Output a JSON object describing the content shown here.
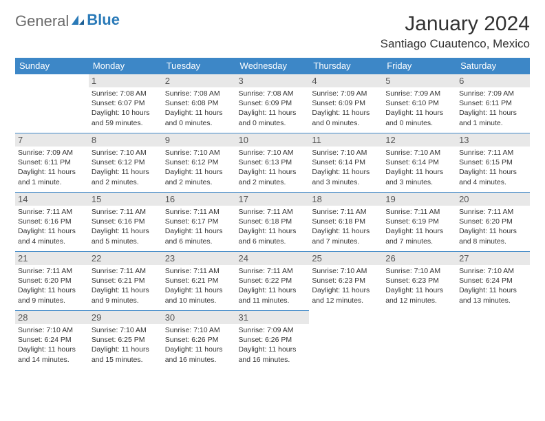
{
  "logo": {
    "text1": "General",
    "text2": "Blue"
  },
  "title": "January 2024",
  "location": "Santiago Cuautenco, Mexico",
  "colors": {
    "header_bg": "#3d87c7",
    "header_text": "#ffffff",
    "daynum_bg": "#e8e8e8",
    "border": "#3d87c7",
    "logo_gray": "#6b6b6b",
    "logo_blue": "#2a7ab8"
  },
  "weekdays": [
    "Sunday",
    "Monday",
    "Tuesday",
    "Wednesday",
    "Thursday",
    "Friday",
    "Saturday"
  ],
  "blank_lead": 1,
  "days": [
    {
      "n": 1,
      "sr": "7:08 AM",
      "ss": "6:07 PM",
      "dl": "10 hours and 59 minutes."
    },
    {
      "n": 2,
      "sr": "7:08 AM",
      "ss": "6:08 PM",
      "dl": "11 hours and 0 minutes."
    },
    {
      "n": 3,
      "sr": "7:08 AM",
      "ss": "6:09 PM",
      "dl": "11 hours and 0 minutes."
    },
    {
      "n": 4,
      "sr": "7:09 AM",
      "ss": "6:09 PM",
      "dl": "11 hours and 0 minutes."
    },
    {
      "n": 5,
      "sr": "7:09 AM",
      "ss": "6:10 PM",
      "dl": "11 hours and 0 minutes."
    },
    {
      "n": 6,
      "sr": "7:09 AM",
      "ss": "6:11 PM",
      "dl": "11 hours and 1 minute."
    },
    {
      "n": 7,
      "sr": "7:09 AM",
      "ss": "6:11 PM",
      "dl": "11 hours and 1 minute."
    },
    {
      "n": 8,
      "sr": "7:10 AM",
      "ss": "6:12 PM",
      "dl": "11 hours and 2 minutes."
    },
    {
      "n": 9,
      "sr": "7:10 AM",
      "ss": "6:12 PM",
      "dl": "11 hours and 2 minutes."
    },
    {
      "n": 10,
      "sr": "7:10 AM",
      "ss": "6:13 PM",
      "dl": "11 hours and 2 minutes."
    },
    {
      "n": 11,
      "sr": "7:10 AM",
      "ss": "6:14 PM",
      "dl": "11 hours and 3 minutes."
    },
    {
      "n": 12,
      "sr": "7:10 AM",
      "ss": "6:14 PM",
      "dl": "11 hours and 3 minutes."
    },
    {
      "n": 13,
      "sr": "7:11 AM",
      "ss": "6:15 PM",
      "dl": "11 hours and 4 minutes."
    },
    {
      "n": 14,
      "sr": "7:11 AM",
      "ss": "6:16 PM",
      "dl": "11 hours and 4 minutes."
    },
    {
      "n": 15,
      "sr": "7:11 AM",
      "ss": "6:16 PM",
      "dl": "11 hours and 5 minutes."
    },
    {
      "n": 16,
      "sr": "7:11 AM",
      "ss": "6:17 PM",
      "dl": "11 hours and 6 minutes."
    },
    {
      "n": 17,
      "sr": "7:11 AM",
      "ss": "6:18 PM",
      "dl": "11 hours and 6 minutes."
    },
    {
      "n": 18,
      "sr": "7:11 AM",
      "ss": "6:18 PM",
      "dl": "11 hours and 7 minutes."
    },
    {
      "n": 19,
      "sr": "7:11 AM",
      "ss": "6:19 PM",
      "dl": "11 hours and 7 minutes."
    },
    {
      "n": 20,
      "sr": "7:11 AM",
      "ss": "6:20 PM",
      "dl": "11 hours and 8 minutes."
    },
    {
      "n": 21,
      "sr": "7:11 AM",
      "ss": "6:20 PM",
      "dl": "11 hours and 9 minutes."
    },
    {
      "n": 22,
      "sr": "7:11 AM",
      "ss": "6:21 PM",
      "dl": "11 hours and 9 minutes."
    },
    {
      "n": 23,
      "sr": "7:11 AM",
      "ss": "6:21 PM",
      "dl": "11 hours and 10 minutes."
    },
    {
      "n": 24,
      "sr": "7:11 AM",
      "ss": "6:22 PM",
      "dl": "11 hours and 11 minutes."
    },
    {
      "n": 25,
      "sr": "7:10 AM",
      "ss": "6:23 PM",
      "dl": "11 hours and 12 minutes."
    },
    {
      "n": 26,
      "sr": "7:10 AM",
      "ss": "6:23 PM",
      "dl": "11 hours and 12 minutes."
    },
    {
      "n": 27,
      "sr": "7:10 AM",
      "ss": "6:24 PM",
      "dl": "11 hours and 13 minutes."
    },
    {
      "n": 28,
      "sr": "7:10 AM",
      "ss": "6:24 PM",
      "dl": "11 hours and 14 minutes."
    },
    {
      "n": 29,
      "sr": "7:10 AM",
      "ss": "6:25 PM",
      "dl": "11 hours and 15 minutes."
    },
    {
      "n": 30,
      "sr": "7:10 AM",
      "ss": "6:26 PM",
      "dl": "11 hours and 16 minutes."
    },
    {
      "n": 31,
      "sr": "7:09 AM",
      "ss": "6:26 PM",
      "dl": "11 hours and 16 minutes."
    }
  ],
  "labels": {
    "sunrise": "Sunrise:",
    "sunset": "Sunset:",
    "daylight": "Daylight:"
  }
}
